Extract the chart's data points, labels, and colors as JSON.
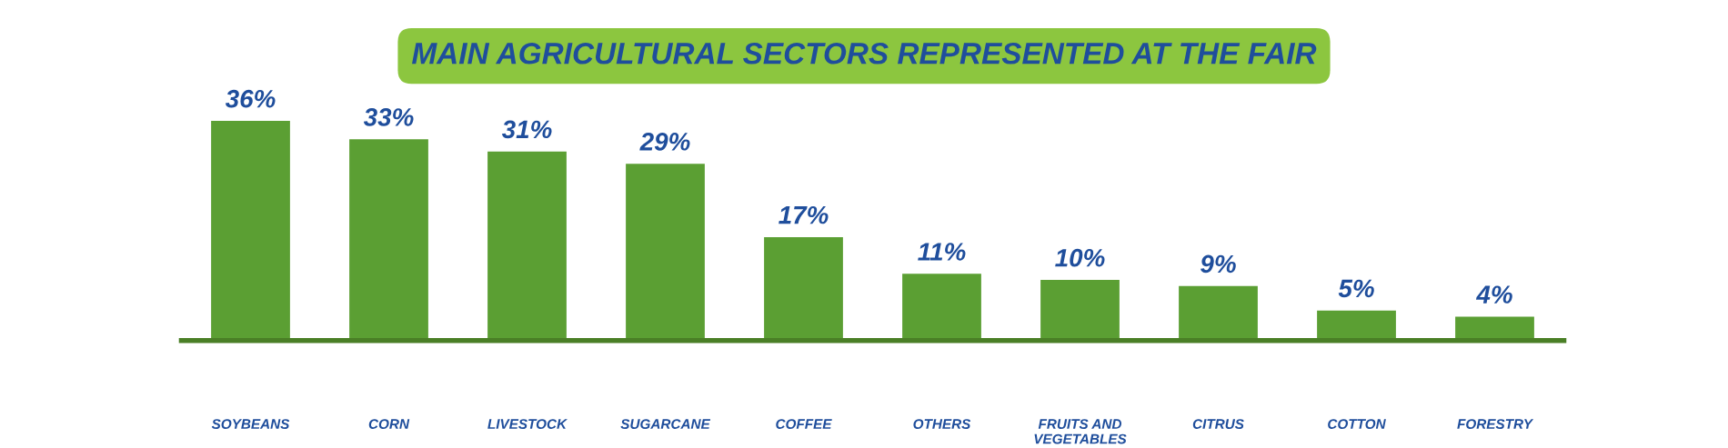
{
  "chart_data": {
    "type": "bar",
    "title": "MAIN AGRICULTURAL SECTORS REPRESENTED AT THE FAIR",
    "categories": [
      "SOYBEANS",
      "CORN",
      "LIVESTOCK",
      "SUGARCANE",
      "COFFEE",
      "OTHERS",
      "FRUITS AND\nVEGETABLES",
      "CITRUS",
      "COTTON",
      "FORESTRY"
    ],
    "values": [
      36,
      33,
      31,
      29,
      17,
      11,
      10,
      9,
      5,
      4
    ],
    "color": "#5b9f33",
    "value_labels": [
      "36%",
      "33%",
      "31%",
      "29%",
      "17%",
      "11%",
      "10%",
      "9%",
      "5%",
      "4%"
    ],
    "tick_labels": "x",
    "grid": false,
    "legend": false
  }
}
